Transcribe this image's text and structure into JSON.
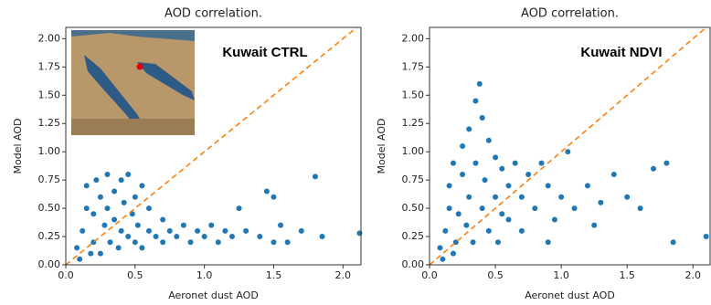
{
  "chart_data": [
    {
      "type": "scatter",
      "title": "AOD correlation.",
      "x_label": "Aeronet dust AOD",
      "y_label": "Model AOD",
      "annotation": "Kuwait CTRL",
      "color": "#1f77b4",
      "reference_line": {
        "kind": "identity",
        "color": "#ff7f0e",
        "dashed": true
      },
      "xlim": [
        0,
        2.13
      ],
      "ylim": [
        0,
        2.1
      ],
      "xticks": [
        {
          "value": 0,
          "label": "0.0"
        },
        {
          "value": 0.5,
          "label": "0.5"
        },
        {
          "value": 1,
          "label": "1.0"
        },
        {
          "value": 1.5,
          "label": "1.5"
        },
        {
          "value": 2,
          "label": "2.0"
        }
      ],
      "yticks": [
        {
          "value": 0,
          "label": "0.00"
        },
        {
          "value": 0.25,
          "label": "0.25"
        },
        {
          "value": 0.5,
          "label": "0.50"
        },
        {
          "value": 0.75,
          "label": "0.75"
        },
        {
          "value": 1,
          "label": "1.00"
        },
        {
          "value": 1.25,
          "label": "1.25"
        },
        {
          "value": 1.5,
          "label": "1.50"
        },
        {
          "value": 1.75,
          "label": "1.75"
        },
        {
          "value": 2,
          "label": "2.00"
        }
      ],
      "x": [
        0.1,
        0.12,
        0.15,
        0.15,
        0.2,
        0.2,
        0.22,
        0.25,
        0.25,
        0.28,
        0.3,
        0.3,
        0.32,
        0.35,
        0.35,
        0.38,
        0.4,
        0.4,
        0.42,
        0.45,
        0.45,
        0.48,
        0.5,
        0.5,
        0.52,
        0.55,
        0.55,
        0.6,
        0.6,
        0.65,
        0.7,
        0.7,
        0.75,
        0.8,
        0.85,
        0.9,
        0.95,
        1.0,
        1.05,
        1.1,
        1.15,
        1.2,
        1.3,
        1.4,
        1.5,
        1.55,
        1.45,
        1.5,
        1.7,
        1.8,
        1.6,
        2.12,
        1.85,
        1.25,
        0.08,
        0.18
      ],
      "values": [
        0.05,
        0.3,
        0.5,
        0.7,
        0.2,
        0.45,
        0.75,
        0.1,
        0.6,
        0.35,
        0.8,
        0.5,
        0.2,
        0.65,
        0.4,
        0.15,
        0.75,
        0.3,
        0.55,
        0.25,
        0.8,
        0.45,
        0.6,
        0.2,
        0.35,
        0.7,
        0.15,
        0.5,
        0.3,
        0.25,
        0.4,
        0.2,
        0.3,
        0.25,
        0.35,
        0.2,
        0.3,
        0.25,
        0.35,
        0.2,
        0.3,
        0.25,
        0.3,
        0.25,
        0.2,
        0.35,
        0.65,
        0.6,
        0.3,
        0.78,
        0.2,
        0.28,
        0.25,
        0.5,
        0.15,
        0.1
      ]
    },
    {
      "type": "scatter",
      "title": "AOD correlation.",
      "x_label": "Aeronet dust AOD",
      "y_label": "Model AOD",
      "annotation": "Kuwait NDVI",
      "color": "#1f77b4",
      "reference_line": {
        "kind": "identity",
        "color": "#ff7f0e",
        "dashed": true
      },
      "xlim": [
        0,
        2.13
      ],
      "ylim": [
        0,
        2.1
      ],
      "xticks": [
        {
          "value": 0,
          "label": "0.0"
        },
        {
          "value": 0.5,
          "label": "0.5"
        },
        {
          "value": 1,
          "label": "1.0"
        },
        {
          "value": 1.5,
          "label": "1.5"
        },
        {
          "value": 2,
          "label": "2.0"
        }
      ],
      "yticks": [
        {
          "value": 0,
          "label": "0.00"
        },
        {
          "value": 0.25,
          "label": "0.25"
        },
        {
          "value": 0.5,
          "label": "0.50"
        },
        {
          "value": 0.75,
          "label": "0.75"
        },
        {
          "value": 1,
          "label": "1.00"
        },
        {
          "value": 1.25,
          "label": "1.25"
        },
        {
          "value": 1.5,
          "label": "1.50"
        },
        {
          "value": 1.75,
          "label": "1.75"
        },
        {
          "value": 2,
          "label": "2.00"
        }
      ],
      "x": [
        0.1,
        0.12,
        0.15,
        0.15,
        0.18,
        0.2,
        0.22,
        0.25,
        0.25,
        0.28,
        0.3,
        0.3,
        0.33,
        0.35,
        0.35,
        0.38,
        0.4,
        0.4,
        0.42,
        0.45,
        0.45,
        0.5,
        0.5,
        0.52,
        0.55,
        0.6,
        0.6,
        0.65,
        0.7,
        0.7,
        0.75,
        0.8,
        0.85,
        0.9,
        0.95,
        1.0,
        1.05,
        1.1,
        1.2,
        1.3,
        1.4,
        1.5,
        1.6,
        1.7,
        1.8,
        1.85,
        2.1,
        1.25,
        0.08,
        0.18,
        0.9,
        0.55
      ],
      "values": [
        0.05,
        0.3,
        0.5,
        0.7,
        0.9,
        0.2,
        0.45,
        0.8,
        1.05,
        0.35,
        0.6,
        1.2,
        0.2,
        1.45,
        0.9,
        1.6,
        0.5,
        1.3,
        0.75,
        1.1,
        0.3,
        0.95,
        0.6,
        0.2,
        0.85,
        0.7,
        0.4,
        0.9,
        0.6,
        0.3,
        0.8,
        0.5,
        0.9,
        0.7,
        0.4,
        0.6,
        1.0,
        0.5,
        0.7,
        0.55,
        0.8,
        0.6,
        0.5,
        0.85,
        0.9,
        0.2,
        0.25,
        0.35,
        0.15,
        0.1,
        0.2,
        0.45
      ]
    }
  ]
}
